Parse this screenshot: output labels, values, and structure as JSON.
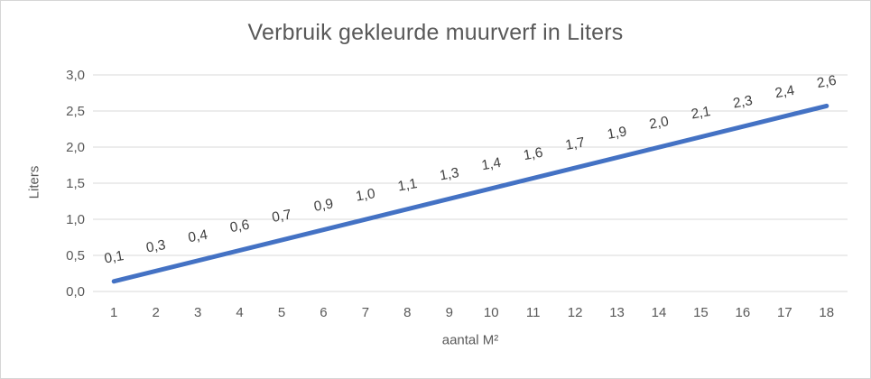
{
  "chart_data": {
    "type": "line",
    "title": "Verbruik gekleurde muurverf in Liters",
    "xlabel": "aantal M²",
    "ylabel": "Liters",
    "categories": [
      "1",
      "2",
      "3",
      "4",
      "5",
      "6",
      "7",
      "8",
      "9",
      "10",
      "11",
      "12",
      "13",
      "14",
      "15",
      "16",
      "17",
      "18"
    ],
    "values": [
      0.14,
      0.29,
      0.43,
      0.57,
      0.71,
      0.86,
      1.0,
      1.14,
      1.29,
      1.43,
      1.57,
      1.71,
      1.86,
      2.0,
      2.14,
      2.29,
      2.43,
      2.57
    ],
    "point_labels": [
      "0,1",
      "0,3",
      "0,4",
      "0,6",
      "0,7",
      "0,9",
      "1,0",
      "1,1",
      "1,3",
      "1,4",
      "1,6",
      "1,7",
      "1,9",
      "2,0",
      "2,1",
      "2,3",
      "2,4",
      "2,6"
    ],
    "ylim": [
      0,
      3
    ],
    "y_tick_values": [
      0,
      0.5,
      1,
      1.5,
      2,
      2.5,
      3
    ],
    "y_tick_labels": [
      "0,0",
      "0,5",
      "1,0",
      "1,5",
      "2,0",
      "2,5",
      "3,0"
    ],
    "grid": "horizontal",
    "legend": "none",
    "label_rotation_deg": -10
  },
  "colors": {
    "line": "#4472C4",
    "gridline": "#D9D9D9",
    "title": "#595959",
    "axis_text": "#595959",
    "data_label": "#404040",
    "border": "#D6D6D6",
    "background": "#FFFFFF"
  }
}
